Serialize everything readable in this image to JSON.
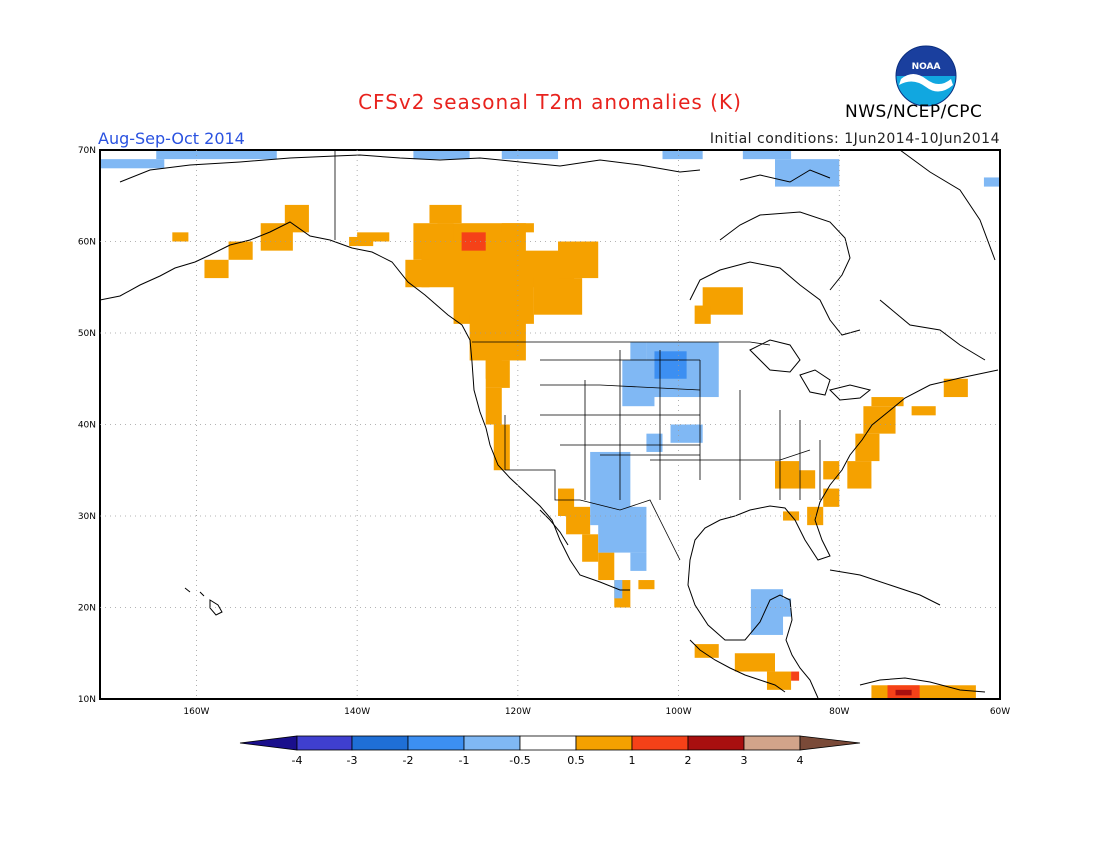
{
  "header": {
    "title": "CFSv2 seasonal T2m anomalies (K)",
    "agency": "NWS/NCEP/CPC",
    "period": "Aug-Sep-Oct 2014",
    "initial_conditions": "Initial conditions: 1Jun2014-10Jun2014",
    "logo_text": "NOAA"
  },
  "axes": {
    "lat_labels": [
      "70N",
      "60N",
      "50N",
      "40N",
      "30N",
      "20N",
      "10N"
    ],
    "lon_labels": [
      "160W",
      "140W",
      "120W",
      "100W",
      "80W",
      "60W"
    ]
  },
  "colorbar": {
    "ticks": [
      "-4",
      "-3",
      "-2",
      "-1",
      "-0.5",
      "0.5",
      "1",
      "2",
      "3",
      "4"
    ],
    "colors": [
      "#1a0f8c",
      "#3f3fcf",
      "#1f6fd6",
      "#3c8ff2",
      "#80b8f4",
      "#ffffff",
      "#f5a100",
      "#f54118",
      "#a80f0f",
      "#d2a48a",
      "#7a4a38"
    ]
  },
  "chart_data": {
    "type": "heatmap",
    "title": "CFSv2 seasonal T2m anomalies (K)",
    "subtitle": "Aug-Sep-Oct 2014",
    "xlim": [
      "172W",
      "60W"
    ],
    "ylim": [
      "10N",
      "70N"
    ],
    "legend_placement": "bottom",
    "color_levels": [
      -4,
      -3,
      -2,
      -1,
      -0.5,
      0.5,
      1,
      2,
      3,
      4
    ],
    "warm_regions": [
      {
        "region": "Western Canada / Pacific Northwest",
        "anomaly": "0.5 to 1",
        "max": "1 to 2"
      },
      {
        "region": "US West Coast (California)",
        "anomaly": "0.5 to 1"
      },
      {
        "region": "Baja California",
        "anomaly": "0.5 to 1"
      },
      {
        "region": "Southern Alaska",
        "anomaly": "0.5 to 1"
      },
      {
        "region": "Hudson Bay area",
        "anomaly": "0.5 to 1"
      },
      {
        "region": "US East Coast",
        "anomaly": "0.5 to 1"
      },
      {
        "region": "Central America",
        "anomaly": "0.5 to 1",
        "max": "1 to 2"
      },
      {
        "region": "Northern South America",
        "anomaly": "0.5 to 1",
        "max": "1 to 2"
      }
    ],
    "cool_regions": [
      {
        "region": "Northern Plains (Dakotas)",
        "anomaly": "-0.5 to -1",
        "max": "-1 to -2"
      },
      {
        "region": "US Southwest / NW Mexico",
        "anomaly": "-0.5 to -1",
        "max": "-1 to -2"
      },
      {
        "region": "Yucatan",
        "anomaly": "-0.5 to -1"
      },
      {
        "region": "Arctic coast / Baffin",
        "anomaly": "-0.5 to -1",
        "max": "-1 to -2"
      }
    ]
  }
}
